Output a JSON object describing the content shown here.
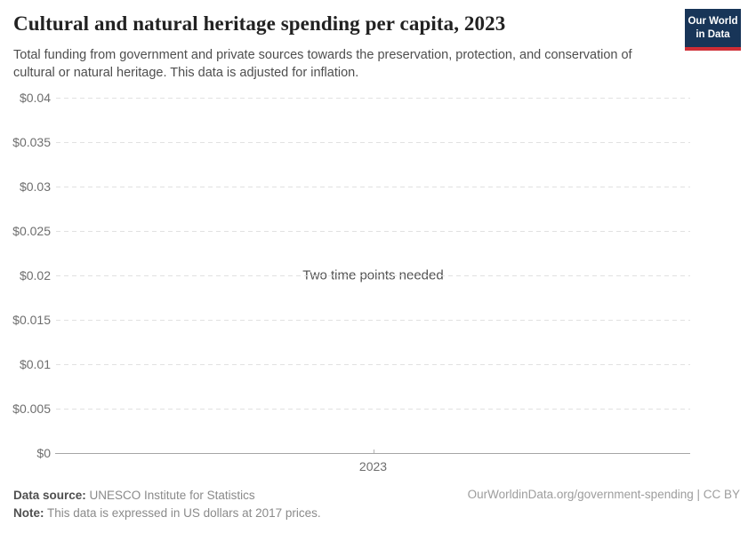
{
  "header": {
    "title": "Cultural and natural heritage spending per capita, 2023",
    "subtitle": "Total funding from government and private sources towards the preservation, protection, and conservation of cultural or natural heritage. This data is adjusted for inflation.",
    "logo": {
      "line1": "Our World",
      "line2": "in Data",
      "bg_color": "#183558",
      "accent_color": "#cf2d35"
    }
  },
  "chart_data": {
    "type": "line",
    "title": "Cultural and natural heritage spending per capita, 2023",
    "empty_state_message": "Two time points needed",
    "series": [],
    "x_ticks": [
      "2023"
    ],
    "y_ticks": [
      "$0",
      "$0.005",
      "$0.01",
      "$0.015",
      "$0.02",
      "$0.025",
      "$0.03",
      "$0.035",
      "$0.04"
    ],
    "ylim": [
      0,
      0.04
    ],
    "xlabel": "",
    "ylabel": "",
    "grid": "horizontal-dashed",
    "legend": "none",
    "colors": {
      "gridline": "#e1e1e1",
      "axis": "#a6a6a6",
      "tick_text": "#6e6e6e"
    }
  },
  "footer": {
    "data_source_label": "Data source:",
    "data_source_value": " UNESCO Institute for Statistics",
    "note_label": "Note:",
    "note_value": " This data is expressed in US dollars at 2017 prices.",
    "attribution": "OurWorldinData.org/government-spending | CC BY"
  }
}
